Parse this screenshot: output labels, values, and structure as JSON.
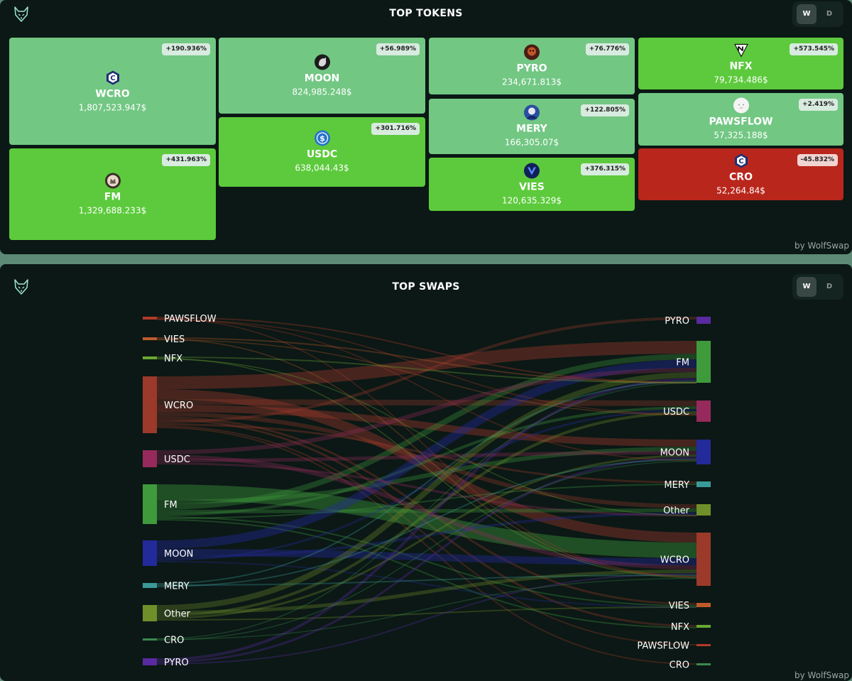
{
  "top_tokens": {
    "title": "TOP TOKENS",
    "period_options": [
      "W",
      "D"
    ],
    "selected_period": "W",
    "credit": "by WolfSwap",
    "tokens": [
      {
        "name": "WCRO",
        "value": "1,807,523.947$",
        "change": "+190.936%",
        "trend": "up",
        "icon": "cronos-coin-icon",
        "tile_color": "#72c783"
      },
      {
        "name": "FM",
        "value": "1,329,688.233$",
        "change": "+431.963%",
        "trend": "up",
        "icon": "fm-token-icon",
        "tile_color": "#5cca3c"
      },
      {
        "name": "MOON",
        "value": "824,985.248$",
        "change": "+56.989%",
        "trend": "up",
        "icon": "moon-token-icon",
        "tile_color": "#72c783"
      },
      {
        "name": "USDC",
        "value": "638,044.43$",
        "change": "+301.716%",
        "trend": "up",
        "icon": "usdc-coin-icon",
        "tile_color": "#5cca3c"
      },
      {
        "name": "PYRO",
        "value": "234,671.813$",
        "change": "+76.776%",
        "trend": "up",
        "icon": "pyro-token-icon",
        "tile_color": "#72c783"
      },
      {
        "name": "MERY",
        "value": "166,305.07$",
        "change": "+122.805%",
        "trend": "up",
        "icon": "mery-token-icon",
        "tile_color": "#72c783"
      },
      {
        "name": "VIES",
        "value": "120,635.329$",
        "change": "+376.315%",
        "trend": "up",
        "icon": "vies-token-icon",
        "tile_color": "#5cca3c"
      },
      {
        "name": "NFX",
        "value": "79,734.486$",
        "change": "+573.545%",
        "trend": "up",
        "icon": "nfx-token-icon",
        "tile_color": "#5cca3c"
      },
      {
        "name": "PAWSFLOW",
        "value": "57,325.188$",
        "change": "+2.419%",
        "trend": "up",
        "icon": "pawsflow-token-icon",
        "tile_color": "#72c783"
      },
      {
        "name": "CRO",
        "value": "52,264.84$",
        "change": "-45.832%",
        "trend": "down",
        "icon": "cronos-coin-icon",
        "tile_color": "#b9261b"
      }
    ]
  },
  "top_swaps": {
    "title": "TOP SWAPS",
    "period_options": [
      "W",
      "D"
    ],
    "selected_period": "W",
    "credit": "by WolfSwap",
    "sources": [
      {
        "label": "PAWSFLOW",
        "color": "#b33a2a"
      },
      {
        "label": "VIES",
        "color": "#c05a2a"
      },
      {
        "label": "NFX",
        "color": "#6aa833"
      },
      {
        "label": "WCRO",
        "color": "#9b3a2a"
      },
      {
        "label": "USDC",
        "color": "#962a5c"
      },
      {
        "label": "FM",
        "color": "#3f9a3c"
      },
      {
        "label": "MOON",
        "color": "#232a9a"
      },
      {
        "label": "MERY",
        "color": "#3a9a98"
      },
      {
        "label": "Other",
        "color": "#6f8f2a"
      },
      {
        "label": "CRO",
        "color": "#3a8a4c"
      },
      {
        "label": "PYRO",
        "color": "#5a2aa0"
      }
    ],
    "targets": [
      {
        "label": "PYRO",
        "color": "#5a2aa0"
      },
      {
        "label": "FM",
        "color": "#3f9a3c"
      },
      {
        "label": "USDC",
        "color": "#962a5c"
      },
      {
        "label": "MOON",
        "color": "#232a9a"
      },
      {
        "label": "MERY",
        "color": "#3a9a98"
      },
      {
        "label": "Other",
        "color": "#6f8f2a"
      },
      {
        "label": "WCRO",
        "color": "#9b3a2a"
      },
      {
        "label": "VIES",
        "color": "#c05a2a"
      },
      {
        "label": "NFX",
        "color": "#6aa833"
      },
      {
        "label": "PAWSFLOW",
        "color": "#b33a2a"
      },
      {
        "label": "CRO",
        "color": "#3a8a4c"
      }
    ]
  }
}
